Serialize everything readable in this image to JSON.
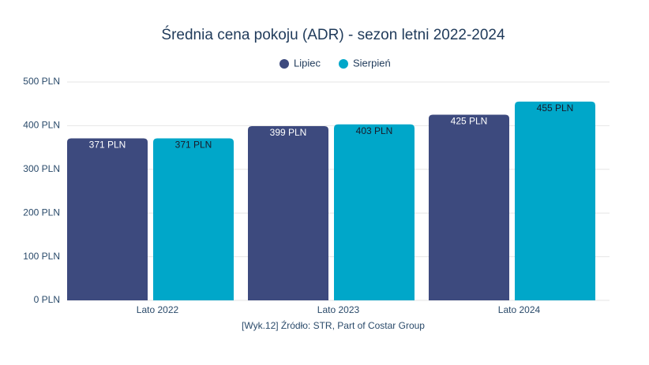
{
  "chart_data": {
    "type": "bar",
    "title": "Średnia cena pokoju (ADR) - sezon letni 2022-2024",
    "source": "[Wyk.12] Źródło: STR, Part of Costar Group",
    "categories": [
      "Lato 2022",
      "Lato 2023",
      "Lato 2024"
    ],
    "series": [
      {
        "name": "Lipiec",
        "color": "#3d4a7e",
        "values": [
          371,
          399,
          425
        ],
        "value_labels": [
          "371 PLN",
          "399 PLN",
          "425 PLN"
        ]
      },
      {
        "name": "Sierpień",
        "color": "#00a7c9",
        "values": [
          371,
          403,
          455
        ],
        "value_labels": [
          "371 PLN",
          "403 PLN",
          "455 PLN"
        ]
      }
    ],
    "ylim": [
      0,
      500
    ],
    "yticks": [
      {
        "value": 0,
        "label": "0 PLN"
      },
      {
        "value": 100,
        "label": "100 PLN"
      },
      {
        "value": 200,
        "label": "200 PLN"
      },
      {
        "value": 300,
        "label": "300 PLN"
      },
      {
        "value": 400,
        "label": "400 PLN"
      },
      {
        "value": 500,
        "label": "500 PLN"
      }
    ],
    "grid": true,
    "legend": "top"
  }
}
